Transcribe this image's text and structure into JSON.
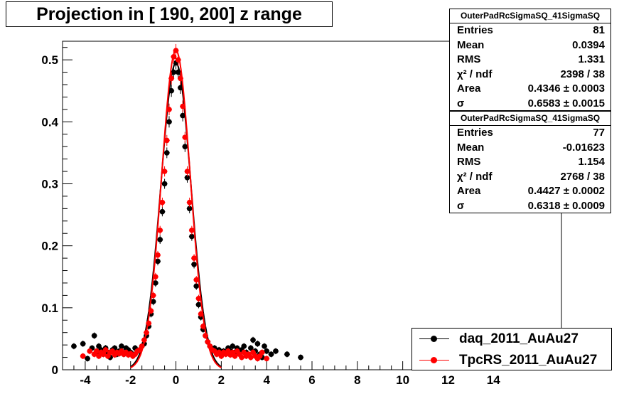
{
  "title": "Projection in [ 190, 200] z range",
  "stats_boxes": [
    {
      "name": "OuterPadRcSigmaSQ_41SigmaSQ",
      "rows": [
        {
          "label": "Entries",
          "value": "81"
        },
        {
          "label": "Mean",
          "value": "0.0394"
        },
        {
          "label": "RMS",
          "value": "1.331"
        },
        {
          "label": "χ² / ndf",
          "value": "2398 / 38"
        },
        {
          "label": "Area",
          "value": "0.4346 ± 0.0003"
        },
        {
          "label": "σ",
          "value": "0.6583 ± 0.0015"
        }
      ]
    },
    {
      "name": "OuterPadRcSigmaSQ_41SigmaSQ",
      "rows": [
        {
          "label": "Entries",
          "value": "77"
        },
        {
          "label": "Mean",
          "value": "-0.01623"
        },
        {
          "label": "RMS",
          "value": "1.154"
        },
        {
          "label": "χ² / ndf",
          "value": "2768 / 38"
        },
        {
          "label": "Area",
          "value": "0.4427 ± 0.0002"
        },
        {
          "label": "σ",
          "value": "0.6318 ± 0.0009"
        }
      ]
    }
  ],
  "legend": [
    {
      "label": "daq_2011_AuAu27",
      "color": "#000000"
    },
    {
      "label": "TpcRS_2011_AuAu27",
      "color": "#ff0000"
    }
  ],
  "chart_data": {
    "type": "scatter",
    "title": "Projection in [ 190, 200] z range",
    "xlim": [
      -5,
      17
    ],
    "ylim": [
      0,
      0.53
    ],
    "x_ticks": [
      -4,
      -2,
      0,
      2,
      4,
      6,
      8,
      10,
      12,
      14
    ],
    "y_ticks": [
      0,
      0.1,
      0.2,
      0.3,
      0.4,
      0.5
    ],
    "y_tick_labels": [
      "0",
      "0.1",
      "0.2",
      "0.3",
      "0.4",
      "0.5"
    ],
    "grid": true,
    "legend_position": "bottom-right",
    "series": [
      {
        "name": "daq_2011_AuAu27",
        "color": "#000000",
        "fit_sigma": 0.6583,
        "points": [
          [
            -4.5,
            0.038
          ],
          [
            -4.1,
            0.042
          ],
          [
            -3.9,
            0.018
          ],
          [
            -3.7,
            0.035
          ],
          [
            -3.6,
            0.055
          ],
          [
            -3.5,
            0.028
          ],
          [
            -3.4,
            0.038
          ],
          [
            -3.3,
            0.032
          ],
          [
            -3.2,
            0.025
          ],
          [
            -3.1,
            0.035
          ],
          [
            -3.0,
            0.028
          ],
          [
            -2.9,
            0.02
          ],
          [
            -2.8,
            0.032
          ],
          [
            -2.7,
            0.035
          ],
          [
            -2.6,
            0.025
          ],
          [
            -2.5,
            0.03
          ],
          [
            -2.4,
            0.038
          ],
          [
            -2.3,
            0.025
          ],
          [
            -2.2,
            0.035
          ],
          [
            -2.1,
            0.032
          ],
          [
            -2.0,
            0.028
          ],
          [
            -1.9,
            0.025
          ],
          [
            -1.8,
            0.035
          ],
          [
            -1.7,
            0.03
          ],
          [
            -1.6,
            0.032
          ],
          [
            -1.5,
            0.038
          ],
          [
            -1.4,
            0.042
          ],
          [
            -1.3,
            0.055
          ],
          [
            -1.2,
            0.07
          ],
          [
            -1.1,
            0.09
          ],
          [
            -1.0,
            0.11
          ],
          [
            -0.9,
            0.14
          ],
          [
            -0.8,
            0.175
          ],
          [
            -0.7,
            0.21
          ],
          [
            -0.6,
            0.255
          ],
          [
            -0.5,
            0.3
          ],
          [
            -0.4,
            0.35
          ],
          [
            -0.3,
            0.4
          ],
          [
            -0.2,
            0.45
          ],
          [
            -0.1,
            0.48
          ],
          [
            0.0,
            0.495
          ],
          [
            0.1,
            0.48
          ],
          [
            0.2,
            0.455
          ],
          [
            0.3,
            0.41
          ],
          [
            0.4,
            0.36
          ],
          [
            0.5,
            0.31
          ],
          [
            0.6,
            0.26
          ],
          [
            0.7,
            0.215
          ],
          [
            0.8,
            0.17
          ],
          [
            0.9,
            0.135
          ],
          [
            1.0,
            0.105
          ],
          [
            1.1,
            0.085
          ],
          [
            1.2,
            0.065
          ],
          [
            1.3,
            0.055
          ],
          [
            1.4,
            0.045
          ],
          [
            1.5,
            0.038
          ],
          [
            1.6,
            0.032
          ],
          [
            1.7,
            0.035
          ],
          [
            1.8,
            0.028
          ],
          [
            1.9,
            0.032
          ],
          [
            2.0,
            0.025
          ],
          [
            2.1,
            0.03
          ],
          [
            2.2,
            0.028
          ],
          [
            2.3,
            0.035
          ],
          [
            2.4,
            0.03
          ],
          [
            2.5,
            0.038
          ],
          [
            2.6,
            0.028
          ],
          [
            2.7,
            0.035
          ],
          [
            2.8,
            0.03
          ],
          [
            2.9,
            0.032
          ],
          [
            3.0,
            0.038
          ],
          [
            3.1,
            0.028
          ],
          [
            3.2,
            0.025
          ],
          [
            3.3,
            0.035
          ],
          [
            3.4,
            0.048
          ],
          [
            3.5,
            0.03
          ],
          [
            3.6,
            0.042
          ],
          [
            3.7,
            0.025
          ],
          [
            3.8,
            0.02
          ],
          [
            3.9,
            0.038
          ],
          [
            4.0,
            0.03
          ],
          [
            4.2,
            0.025
          ],
          [
            4.4,
            0.03
          ],
          [
            4.9,
            0.025
          ],
          [
            5.5,
            0.02
          ]
        ]
      },
      {
        "name": "TpcRS_2011_AuAu27",
        "color": "#ff0000",
        "fit_sigma": 0.6318,
        "points": [
          [
            -4.1,
            0.022
          ],
          [
            -3.8,
            0.03
          ],
          [
            -3.6,
            0.025
          ],
          [
            -3.5,
            0.03
          ],
          [
            -3.4,
            0.022
          ],
          [
            -3.3,
            0.028
          ],
          [
            -3.2,
            0.025
          ],
          [
            -3.1,
            0.032
          ],
          [
            -3.0,
            0.022
          ],
          [
            -2.9,
            0.028
          ],
          [
            -2.8,
            0.03
          ],
          [
            -2.7,
            0.024
          ],
          [
            -2.6,
            0.028
          ],
          [
            -2.5,
            0.026
          ],
          [
            -2.4,
            0.03
          ],
          [
            -2.3,
            0.025
          ],
          [
            -2.2,
            0.028
          ],
          [
            -2.1,
            0.024
          ],
          [
            -2.0,
            0.026
          ],
          [
            -1.9,
            0.022
          ],
          [
            -1.8,
            0.025
          ],
          [
            -1.7,
            0.03
          ],
          [
            -1.6,
            0.032
          ],
          [
            -1.5,
            0.038
          ],
          [
            -1.4,
            0.048
          ],
          [
            -1.3,
            0.06
          ],
          [
            -1.2,
            0.075
          ],
          [
            -1.1,
            0.095
          ],
          [
            -1.0,
            0.12
          ],
          [
            -0.9,
            0.15
          ],
          [
            -0.8,
            0.185
          ],
          [
            -0.7,
            0.225
          ],
          [
            -0.6,
            0.27
          ],
          [
            -0.5,
            0.32
          ],
          [
            -0.4,
            0.37
          ],
          [
            -0.3,
            0.42
          ],
          [
            -0.2,
            0.47
          ],
          [
            -0.1,
            0.505
          ],
          [
            0.0,
            0.515
          ],
          [
            0.1,
            0.5
          ],
          [
            0.2,
            0.47
          ],
          [
            0.3,
            0.425
          ],
          [
            0.4,
            0.375
          ],
          [
            0.5,
            0.32
          ],
          [
            0.6,
            0.27
          ],
          [
            0.7,
            0.225
          ],
          [
            0.8,
            0.18
          ],
          [
            0.9,
            0.145
          ],
          [
            1.0,
            0.115
          ],
          [
            1.1,
            0.09
          ],
          [
            1.2,
            0.07
          ],
          [
            1.3,
            0.055
          ],
          [
            1.4,
            0.045
          ],
          [
            1.5,
            0.038
          ],
          [
            1.6,
            0.032
          ],
          [
            1.7,
            0.03
          ],
          [
            1.8,
            0.025
          ],
          [
            1.9,
            0.028
          ],
          [
            2.0,
            0.022
          ],
          [
            2.1,
            0.028
          ],
          [
            2.2,
            0.025
          ],
          [
            2.3,
            0.03
          ],
          [
            2.4,
            0.024
          ],
          [
            2.5,
            0.028
          ],
          [
            2.6,
            0.022
          ],
          [
            2.7,
            0.03
          ],
          [
            2.8,
            0.025
          ],
          [
            2.9,
            0.02
          ],
          [
            3.0,
            0.028
          ],
          [
            3.1,
            0.022
          ],
          [
            3.2,
            0.025
          ],
          [
            3.3,
            0.02
          ],
          [
            3.4,
            0.028
          ],
          [
            3.5,
            0.022
          ],
          [
            3.6,
            0.018
          ],
          [
            3.7,
            0.022
          ],
          [
            3.8,
            0.028
          ],
          [
            4.0,
            0.018
          ]
        ]
      }
    ]
  }
}
